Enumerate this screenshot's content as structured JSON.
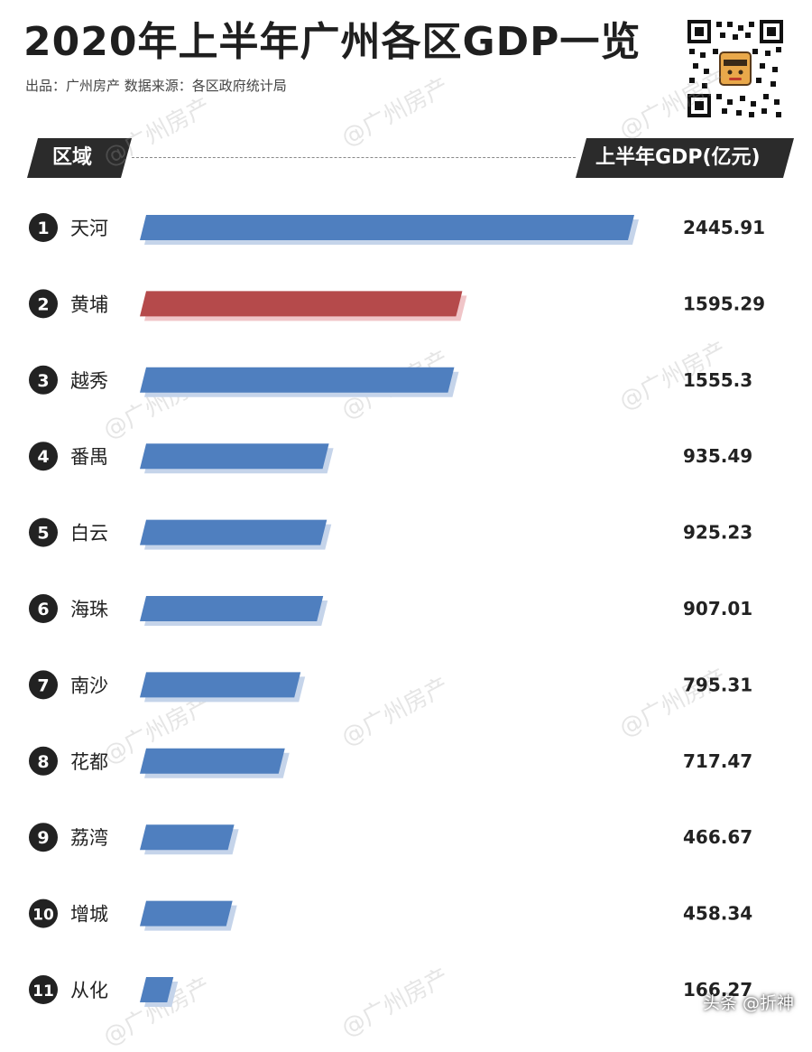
{
  "title": "2020年上半年广州各区GDP一览",
  "subtitle": "出品：广州房产 数据来源：各区政府统计局",
  "header": {
    "left": "区域",
    "right": "上半年GDP(亿元)"
  },
  "watermark": "@广州房产",
  "footer": "头条 @折神",
  "colors": {
    "bar": "#4f7fbf",
    "bar_shadow": "#c5d4ea",
    "highlight": "#b54a4b",
    "highlight_shadow": "#f0c5c8",
    "badge": "#222222",
    "header_bg": "#2b2b2b"
  },
  "chart_data": {
    "type": "bar",
    "orientation": "horizontal",
    "title": "2020年上半年广州各区GDP一览",
    "xlabel": "上半年GDP(亿元)",
    "ylabel": "区域",
    "highlight_index": 1,
    "rows": [
      {
        "rank": "1",
        "name": "天河",
        "value": 2445.91,
        "label": "2445.91"
      },
      {
        "rank": "2",
        "name": "黄埔",
        "value": 1595.29,
        "label": "1595.29"
      },
      {
        "rank": "3",
        "name": "越秀",
        "value": 1555.3,
        "label": "1555.3"
      },
      {
        "rank": "4",
        "name": "番禺",
        "value": 935.49,
        "label": "935.49"
      },
      {
        "rank": "5",
        "name": "白云",
        "value": 925.23,
        "label": "925.23"
      },
      {
        "rank": "6",
        "name": "海珠",
        "value": 907.01,
        "label": "907.01"
      },
      {
        "rank": "7",
        "name": "南沙",
        "value": 795.31,
        "label": "795.31"
      },
      {
        "rank": "8",
        "name": "花都",
        "value": 717.47,
        "label": "717.47"
      },
      {
        "rank": "9",
        "name": "荔湾",
        "value": 466.67,
        "label": "466.67"
      },
      {
        "rank": "10",
        "name": "增城",
        "value": 458.34,
        "label": "458.34"
      },
      {
        "rank": "11",
        "name": "从化",
        "value": 166.27,
        "label": "166.27"
      }
    ]
  }
}
